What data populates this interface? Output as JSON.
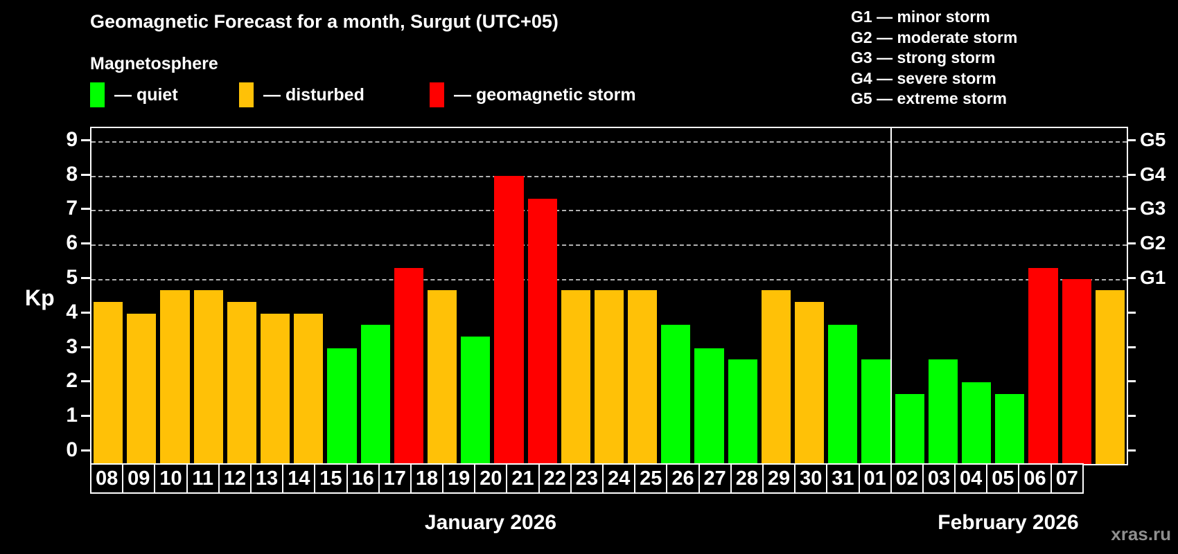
{
  "title": "Geomagnetic Forecast for a month, Surgut (UTC+05)",
  "subtitle": "Magnetosphere",
  "legend": {
    "quiet": {
      "label": "— quiet",
      "color": "#00ff00"
    },
    "disturbed": {
      "label": "— disturbed",
      "color": "#ffc107"
    },
    "storm": {
      "label": "— geomagnetic storm",
      "color": "#ff0000"
    }
  },
  "storm_scale_legend": [
    "G1 — minor storm",
    "G2 — moderate storm",
    "G3 — strong storm",
    "G4 — severe storm",
    "G5 — extreme storm"
  ],
  "axis": {
    "ylabel": "Kp",
    "yticks": [
      "0",
      "1",
      "2",
      "3",
      "4",
      "5",
      "6",
      "7",
      "8",
      "9"
    ],
    "right_labels": [
      {
        "kp": 5,
        "label": "G1"
      },
      {
        "kp": 6,
        "label": "G2"
      },
      {
        "kp": 7,
        "label": "G3"
      },
      {
        "kp": 8,
        "label": "G4"
      },
      {
        "kp": 9,
        "label": "G5"
      }
    ]
  },
  "months": {
    "january": "January 2026",
    "february": "February 2026"
  },
  "watermark": "xras.ru",
  "chart_data": {
    "type": "bar",
    "title": "Geomagnetic Forecast for a month, Surgut (UTC+05)",
    "xlabel": "",
    "ylabel": "Kp",
    "ylim": [
      0,
      9
    ],
    "grid": "horizontal dashed lines at Kp 5,6,7,8,9 (G1–G5 thresholds)",
    "legend_position": "top-left",
    "status_colors": {
      "quiet": "#00ff00",
      "disturbed": "#ffc107",
      "storm": "#ff0000"
    },
    "days": [
      {
        "month": "January 2026",
        "day": "08",
        "kp": 4.33,
        "status": "disturbed"
      },
      {
        "month": "January 2026",
        "day": "09",
        "kp": 4.0,
        "status": "disturbed"
      },
      {
        "month": "January 2026",
        "day": "10",
        "kp": 4.67,
        "status": "disturbed"
      },
      {
        "month": "January 2026",
        "day": "11",
        "kp": 4.67,
        "status": "disturbed"
      },
      {
        "month": "January 2026",
        "day": "12",
        "kp": 4.33,
        "status": "disturbed"
      },
      {
        "month": "January 2026",
        "day": "13",
        "kp": 4.0,
        "status": "disturbed"
      },
      {
        "month": "January 2026",
        "day": "14",
        "kp": 4.0,
        "status": "disturbed"
      },
      {
        "month": "January 2026",
        "day": "15",
        "kp": 3.0,
        "status": "quiet"
      },
      {
        "month": "January 2026",
        "day": "16",
        "kp": 3.67,
        "status": "quiet"
      },
      {
        "month": "January 2026",
        "day": "17",
        "kp": 5.33,
        "status": "storm"
      },
      {
        "month": "January 2026",
        "day": "18",
        "kp": 4.67,
        "status": "disturbed"
      },
      {
        "month": "January 2026",
        "day": "19",
        "kp": 3.33,
        "status": "quiet"
      },
      {
        "month": "January 2026",
        "day": "20",
        "kp": 8.0,
        "status": "storm"
      },
      {
        "month": "January 2026",
        "day": "21",
        "kp": 7.33,
        "status": "storm"
      },
      {
        "month": "January 2026",
        "day": "22",
        "kp": 4.67,
        "status": "disturbed"
      },
      {
        "month": "January 2026",
        "day": "23",
        "kp": 4.67,
        "status": "disturbed"
      },
      {
        "month": "January 2026",
        "day": "24",
        "kp": 4.67,
        "status": "disturbed"
      },
      {
        "month": "January 2026",
        "day": "25",
        "kp": 3.67,
        "status": "quiet"
      },
      {
        "month": "January 2026",
        "day": "26",
        "kp": 3.0,
        "status": "quiet"
      },
      {
        "month": "January 2026",
        "day": "27",
        "kp": 2.67,
        "status": "quiet"
      },
      {
        "month": "January 2026",
        "day": "28",
        "kp": 4.67,
        "status": "disturbed"
      },
      {
        "month": "January 2026",
        "day": "29",
        "kp": 4.33,
        "status": "disturbed"
      },
      {
        "month": "January 2026",
        "day": "30",
        "kp": 3.67,
        "status": "quiet"
      },
      {
        "month": "January 2026",
        "day": "31",
        "kp": 2.67,
        "status": "quiet"
      },
      {
        "month": "February 2026",
        "day": "01",
        "kp": 1.67,
        "status": "quiet"
      },
      {
        "month": "February 2026",
        "day": "02",
        "kp": 2.67,
        "status": "quiet"
      },
      {
        "month": "February 2026",
        "day": "03",
        "kp": 2.0,
        "status": "quiet"
      },
      {
        "month": "February 2026",
        "day": "04",
        "kp": 1.67,
        "status": "quiet"
      },
      {
        "month": "February 2026",
        "day": "05",
        "kp": 5.33,
        "status": "storm"
      },
      {
        "month": "February 2026",
        "day": "06",
        "kp": 5.0,
        "status": "storm"
      },
      {
        "month": "February 2026",
        "day": "07",
        "kp": 4.67,
        "status": "disturbed"
      }
    ]
  }
}
